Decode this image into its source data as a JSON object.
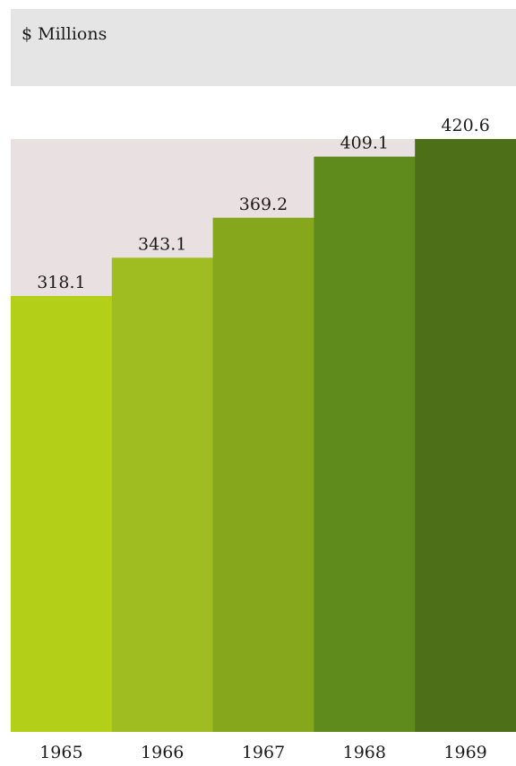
{
  "header": {
    "unit_label": "$ Millions"
  },
  "chart_data": {
    "type": "bar",
    "categories": [
      "1965",
      "1966",
      "1967",
      "1968",
      "1969"
    ],
    "values": [
      318.1,
      343.1,
      369.2,
      409.1,
      420.6
    ],
    "value_labels": [
      "318.1",
      "343.1",
      "369.2",
      "409.1",
      "420.6"
    ],
    "ylabel": "$ Millions",
    "xlabel": "",
    "title": "",
    "ylim": [
      0,
      420.6
    ],
    "grid": false,
    "legend": "none",
    "colors": [
      "#b4cf18",
      "#9fbd21",
      "#86a61b",
      "#5f8a1c",
      "#4c6f18"
    ],
    "background_color": "#e9e1e1"
  }
}
